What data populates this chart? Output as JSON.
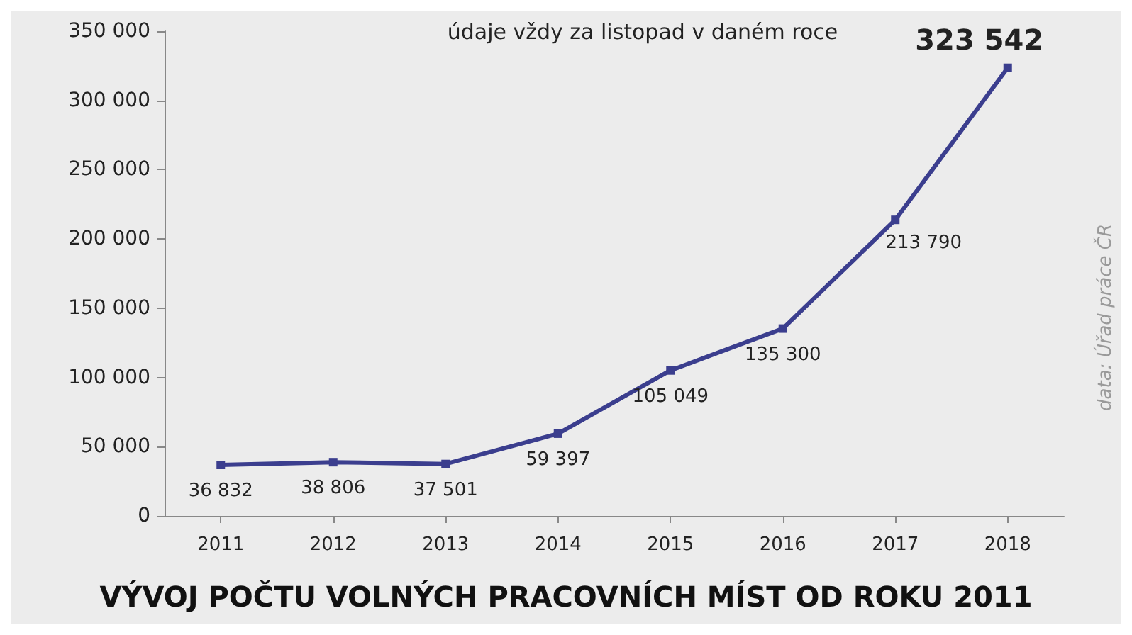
{
  "chart_data": {
    "type": "line",
    "title": "VÝVOJ POČTU VOLNÝCH PRACOVNÍCH MÍST OD ROKU 2011",
    "subtitle": "údaje vždy za listopad v daném roce",
    "annotations": [
      "data: Úřad práce ČR"
    ],
    "categories": [
      "2011",
      "2012",
      "2013",
      "2014",
      "2015",
      "2016",
      "2017",
      "2018"
    ],
    "series": [
      {
        "color": "#3b3e8e",
        "values": [
          36832,
          38806,
          37501,
          59397,
          105049,
          135300,
          213790,
          323542
        ],
        "value_labels": [
          "36 832",
          "38 806",
          "37 501",
          "59 397",
          "105 049",
          "135 300",
          "213 790",
          "323 542"
        ]
      }
    ],
    "ylim": [
      0,
      350000
    ],
    "yticks": [
      0,
      {
        "value": 50000,
        "label": "50 000"
      },
      {
        "value": 100000,
        "label": "100 000"
      },
      {
        "value": 150000,
        "label": "150 000"
      },
      {
        "value": 200000,
        "label": "200 000"
      },
      {
        "value": 250000,
        "label": "250 000"
      },
      {
        "value": 300000,
        "label": "300 000"
      },
      {
        "value": 350000,
        "label": "350 000"
      }
    ],
    "grid": false,
    "marker": "square",
    "line_style": "solid"
  }
}
